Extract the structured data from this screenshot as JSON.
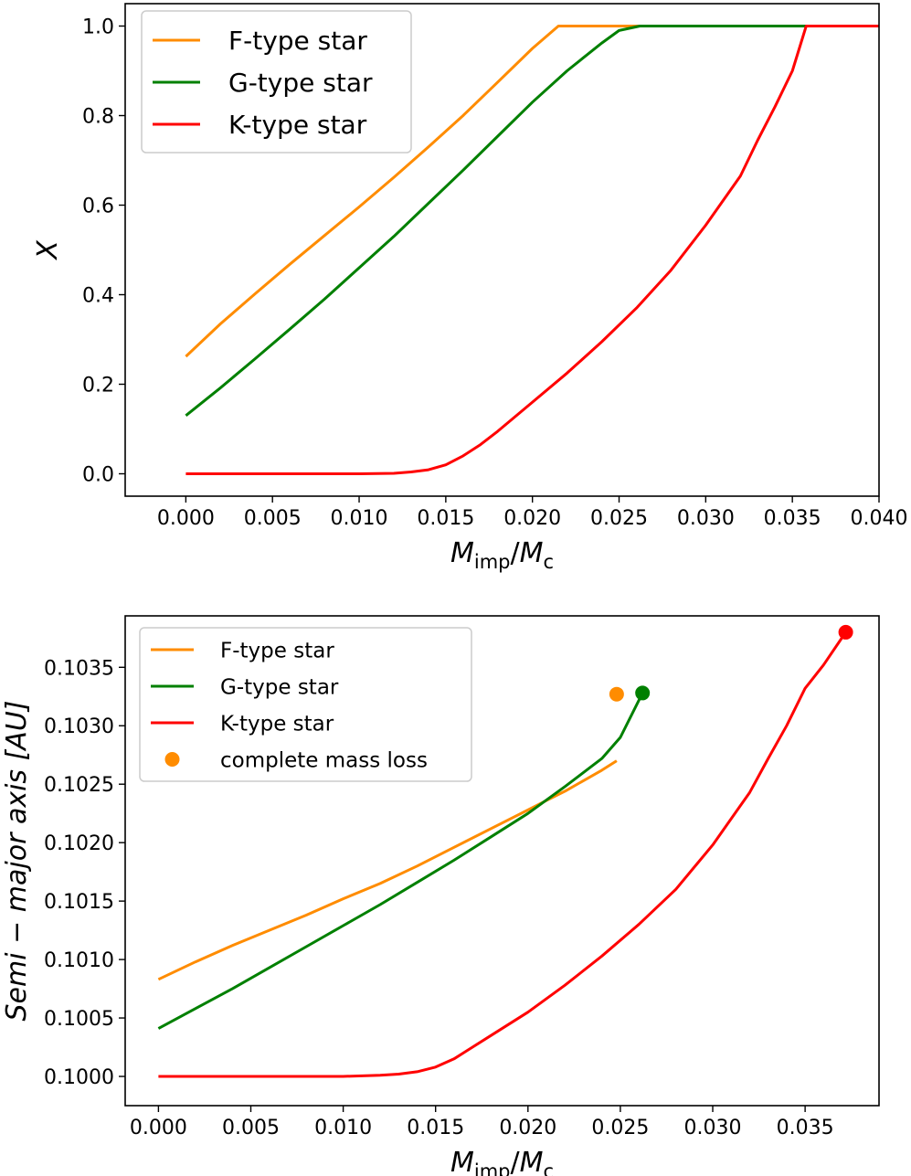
{
  "chart_data": [
    {
      "type": "line",
      "xlabel": "M_imp/M_c",
      "ylabel": "X",
      "xlim": [
        -0.0035,
        0.04
      ],
      "ylim": [
        -0.05,
        1.05
      ],
      "xticks": [
        "0.000",
        "0.005",
        "0.010",
        "0.015",
        "0.020",
        "0.025",
        "0.030",
        "0.035",
        "0.040"
      ],
      "yticks": [
        "0.0",
        "0.2",
        "0.4",
        "0.6",
        "0.8",
        "1.0"
      ],
      "legend": "top-left",
      "grid": false,
      "series": [
        {
          "name": "F-type star",
          "color": "#ff8c00",
          "x": [
            0.0,
            0.002,
            0.004,
            0.006,
            0.008,
            0.01,
            0.012,
            0.014,
            0.016,
            0.018,
            0.02,
            0.0215,
            0.0228,
            0.0238,
            0.026,
            0.03,
            0.04
          ],
          "y": [
            0.262,
            0.335,
            0.402,
            0.468,
            0.532,
            0.596,
            0.662,
            0.73,
            0.8,
            0.875,
            0.95,
            1.0,
            1.0,
            1.0,
            1.0,
            1.0,
            1.0
          ]
        },
        {
          "name": "G-type star",
          "color": "#008000",
          "x": [
            0.0,
            0.002,
            0.004,
            0.006,
            0.008,
            0.01,
            0.012,
            0.014,
            0.016,
            0.018,
            0.02,
            0.022,
            0.024,
            0.025,
            0.0262,
            0.03,
            0.04
          ],
          "y": [
            0.13,
            0.192,
            0.257,
            0.323,
            0.39,
            0.46,
            0.53,
            0.604,
            0.678,
            0.754,
            0.83,
            0.9,
            0.962,
            0.99,
            1.0,
            1.0,
            1.0
          ]
        },
        {
          "name": "K-type star",
          "color": "#ff0000",
          "x": [
            0.0,
            0.004,
            0.008,
            0.01,
            0.012,
            0.013,
            0.014,
            0.015,
            0.016,
            0.017,
            0.018,
            0.02,
            0.022,
            0.024,
            0.026,
            0.028,
            0.03,
            0.032,
            0.033,
            0.034,
            0.035,
            0.0358,
            0.037,
            0.04
          ],
          "y": [
            0.0,
            0.0,
            0.0,
            0.0,
            0.001,
            0.004,
            0.009,
            0.02,
            0.04,
            0.065,
            0.095,
            0.16,
            0.225,
            0.295,
            0.37,
            0.455,
            0.555,
            0.665,
            0.745,
            0.82,
            0.9,
            1.0,
            1.0,
            1.0
          ]
        }
      ]
    },
    {
      "type": "line",
      "xlabel": "M_imp/M_c",
      "ylabel": "Semi − major axis [AU]",
      "xlim": [
        -0.0018,
        0.039
      ],
      "ylim": [
        0.09975,
        0.10394
      ],
      "xticks": [
        "0.000",
        "0.005",
        "0.010",
        "0.015",
        "0.020",
        "0.025",
        "0.030",
        "0.035"
      ],
      "yticks": [
        "0.1000",
        "0.1005",
        "0.1010",
        "0.1015",
        "0.1020",
        "0.1025",
        "0.1030",
        "0.1035"
      ],
      "legend": "top-left",
      "grid": false,
      "series": [
        {
          "name": "F-type star",
          "color": "#ff8c00",
          "x": [
            0.0,
            0.002,
            0.004,
            0.006,
            0.008,
            0.01,
            0.012,
            0.014,
            0.016,
            0.018,
            0.02,
            0.021,
            0.022,
            0.023,
            0.024,
            0.0248
          ],
          "y": [
            0.10083,
            0.10098,
            0.10112,
            0.10125,
            0.10138,
            0.10152,
            0.10165,
            0.1018,
            0.10196,
            0.10212,
            0.10228,
            0.10236,
            0.10244,
            0.10253,
            0.10262,
            0.1027
          ]
        },
        {
          "name": "G-type star",
          "color": "#008000",
          "x": [
            0.0,
            0.002,
            0.004,
            0.006,
            0.008,
            0.01,
            0.012,
            0.014,
            0.016,
            0.018,
            0.02,
            0.022,
            0.024,
            0.025,
            0.0262
          ],
          "y": [
            0.10041,
            0.10058,
            0.10075,
            0.10093,
            0.10111,
            0.10129,
            0.10147,
            0.10166,
            0.10185,
            0.10205,
            0.10225,
            0.10248,
            0.10272,
            0.1029,
            0.10328
          ]
        },
        {
          "name": "K-type star",
          "color": "#ff0000",
          "x": [
            0.0,
            0.004,
            0.008,
            0.01,
            0.012,
            0.013,
            0.014,
            0.015,
            0.016,
            0.017,
            0.018,
            0.02,
            0.022,
            0.024,
            0.026,
            0.028,
            0.03,
            0.032,
            0.033,
            0.034,
            0.035,
            0.036,
            0.0372
          ],
          "y": [
            0.1,
            0.1,
            0.1,
            0.1,
            0.10001,
            0.10002,
            0.10004,
            0.10008,
            0.10015,
            0.10025,
            0.10035,
            0.10055,
            0.10078,
            0.10103,
            0.1013,
            0.1016,
            0.10198,
            0.10243,
            0.10272,
            0.103,
            0.10332,
            0.10352,
            0.1038
          ]
        },
        {
          "name": "complete mass loss",
          "color": "#ff8c00",
          "kind": "points",
          "points": [
            {
              "x": 0.0248,
              "y": 0.10327,
              "color": "#ff8c00"
            },
            {
              "x": 0.0262,
              "y": 0.10328,
              "color": "#008000"
            },
            {
              "x": 0.0372,
              "y": 0.1038,
              "color": "#ff0000"
            }
          ]
        }
      ]
    }
  ]
}
